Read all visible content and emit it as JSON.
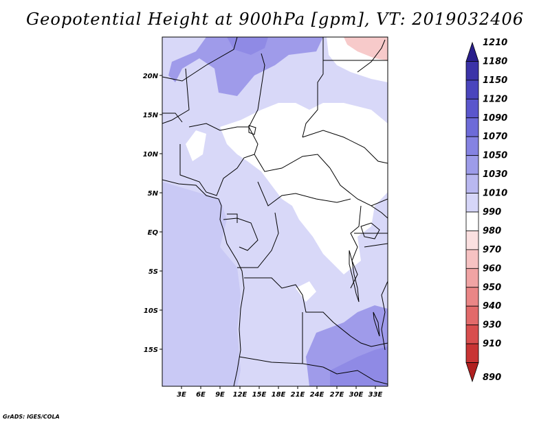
{
  "title": "Geopotential Height at 900hPa [gpm], VT: 2019032406",
  "credit": "GrADS: IGES/COLA",
  "lat_labels": [
    "20N",
    "15N",
    "10N",
    "5N",
    "EQ",
    "5S",
    "10S",
    "15S"
  ],
  "lon_labels": [
    "3E",
    "6E",
    "9E",
    "12E",
    "15E",
    "18E",
    "21E",
    "24E",
    "27E",
    "30E",
    "33E"
  ],
  "colorbar": {
    "levels": [
      "1210",
      "1180",
      "1150",
      "1120",
      "1090",
      "1070",
      "1050",
      "1030",
      "1010",
      "990",
      "980",
      "970",
      "960",
      "950",
      "940",
      "930",
      "910",
      "890"
    ],
    "colors": [
      "#2a1f8c",
      "#3b33a8",
      "#4a45bd",
      "#5a56cc",
      "#6d6bd8",
      "#8583e2",
      "#9d9ce9",
      "#b9b8f0",
      "#d6d6f8",
      "#ffffff",
      "#fbe0e0",
      "#f6c2c2",
      "#f0a4a4",
      "#ea8686",
      "#e26a6a",
      "#d84e4e",
      "#c83434",
      "#b02020"
    ]
  },
  "map_colors": {
    "base": "#d8d8f8",
    "ocean_mid": "#c9c9f5",
    "low": "#ffffff",
    "high": "#9f9bea",
    "high2": "#8f8ae5",
    "pink": "#f7caca"
  }
}
